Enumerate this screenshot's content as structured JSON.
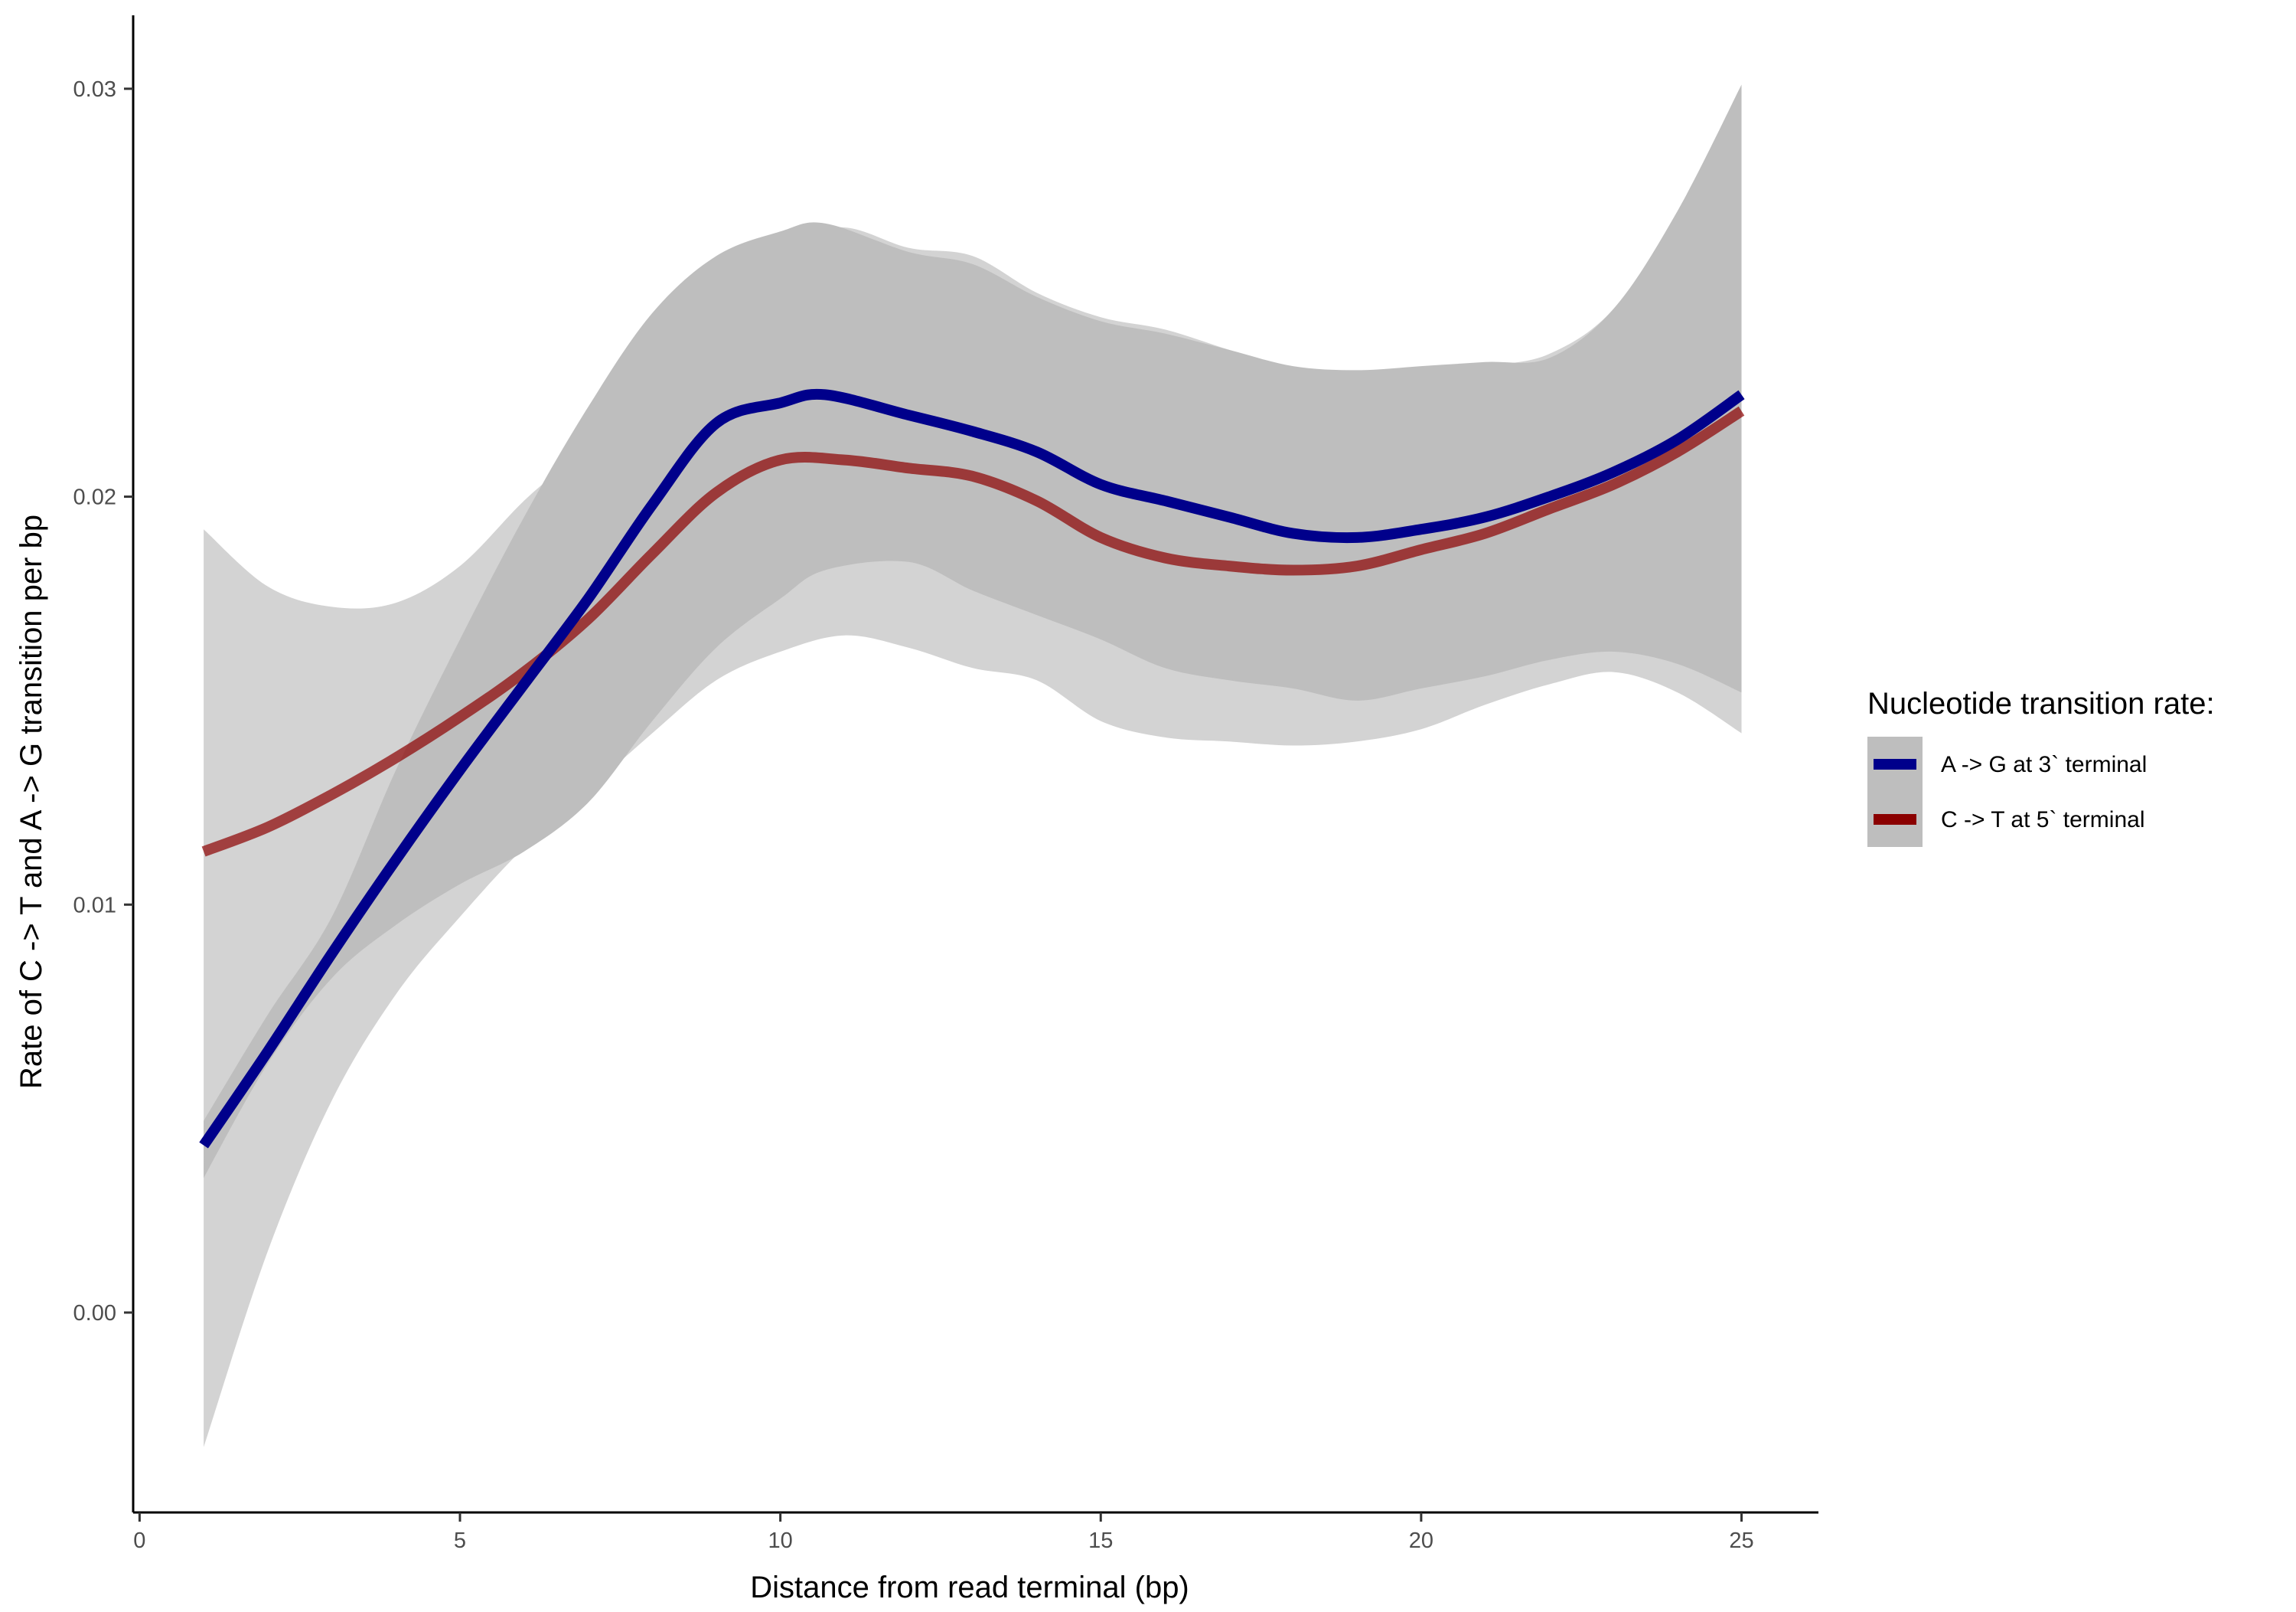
{
  "chart_data": {
    "type": "line",
    "title": "",
    "xlabel": "Distance from read terminal (bp)",
    "ylabel": "Rate of C -> T and A -> G transition per bp",
    "xlim": [
      -0.1,
      26.2
    ],
    "ylim": [
      -0.0049,
      0.0318
    ],
    "x_ticks": [
      0,
      5,
      10,
      15,
      20,
      25
    ],
    "y_ticks": [
      0.0,
      0.01,
      0.02,
      0.03
    ],
    "x_tick_labels": [
      "0",
      "5",
      "10",
      "15",
      "20",
      "25"
    ],
    "y_tick_labels": [
      "0.00",
      "0.01",
      "0.02",
      "0.03"
    ],
    "grid": false,
    "legend_position": "right",
    "legend_title": "Nucleotide transition rate:",
    "series": [
      {
        "name": "A -> G at 3` terminal",
        "color": "#00008B",
        "ribbon_color": "#bebebe",
        "x": [
          1,
          2,
          3,
          4,
          5,
          6,
          7,
          8,
          9,
          10,
          10.7,
          12,
          13,
          14,
          15,
          16,
          17,
          18,
          19,
          20,
          21,
          22,
          23,
          24,
          25
        ],
        "y": [
          0.0041,
          0.0064,
          0.0088,
          0.0111,
          0.0133,
          0.0154,
          0.0175,
          0.0198,
          0.0218,
          0.0223,
          0.0225,
          0.022,
          0.0216,
          0.0211,
          0.0203,
          0.0199,
          0.0195,
          0.0191,
          0.019,
          0.0192,
          0.0195,
          0.02,
          0.0206,
          0.0214,
          0.0225
        ],
        "lower": [
          0.0033,
          0.0061,
          0.0082,
          0.0095,
          0.0105,
          0.0113,
          0.0125,
          0.0145,
          0.0163,
          0.0175,
          0.0182,
          0.0184,
          0.0177,
          0.0171,
          0.0165,
          0.0158,
          0.0155,
          0.0153,
          0.015,
          0.0153,
          0.0156,
          0.016,
          0.0162,
          0.0159,
          0.0152
        ],
        "upper": [
          0.0047,
          0.0073,
          0.0097,
          0.0133,
          0.0165,
          0.0195,
          0.0222,
          0.0245,
          0.0259,
          0.0265,
          0.0267,
          0.026,
          0.0257,
          0.0249,
          0.0243,
          0.024,
          0.0236,
          0.0232,
          0.0231,
          0.0232,
          0.0233,
          0.0234,
          0.0246,
          0.027,
          0.0301
        ]
      },
      {
        "name": "C -> T at 5` terminal",
        "color": "#8B0000",
        "ribbon_color": "#d3d3d3",
        "x": [
          1,
          2,
          3,
          4,
          5,
          6,
          7,
          8,
          9,
          10,
          11,
          12,
          13,
          14,
          15,
          16,
          17,
          18,
          19,
          20,
          21,
          22,
          23,
          24,
          25
        ],
        "y": [
          0.0113,
          0.0119,
          0.0127,
          0.0136,
          0.0146,
          0.0157,
          0.017,
          0.0186,
          0.0201,
          0.0209,
          0.0209,
          0.0207,
          0.0205,
          0.0199,
          0.019,
          0.0185,
          0.0183,
          0.0182,
          0.0183,
          0.0187,
          0.0191,
          0.0197,
          0.0203,
          0.0211,
          0.0221
        ],
        "lower": [
          -0.0033,
          0.0015,
          0.0052,
          0.0078,
          0.0097,
          0.0114,
          0.0128,
          0.0142,
          0.0155,
          0.0162,
          0.0166,
          0.0163,
          0.0158,
          0.0155,
          0.0145,
          0.0141,
          0.014,
          0.0139,
          0.014,
          0.0143,
          0.0149,
          0.0154,
          0.0157,
          0.0152,
          0.0142
        ],
        "upper": [
          0.0192,
          0.0178,
          0.0173,
          0.0174,
          0.0183,
          0.0199,
          0.0213,
          0.0232,
          0.0249,
          0.0263,
          0.0266,
          0.0261,
          0.0259,
          0.025,
          0.0244,
          0.0241,
          0.0236,
          0.0231,
          0.023,
          0.023,
          0.0232,
          0.0235,
          0.0246,
          0.027,
          0.0301
        ]
      }
    ]
  }
}
